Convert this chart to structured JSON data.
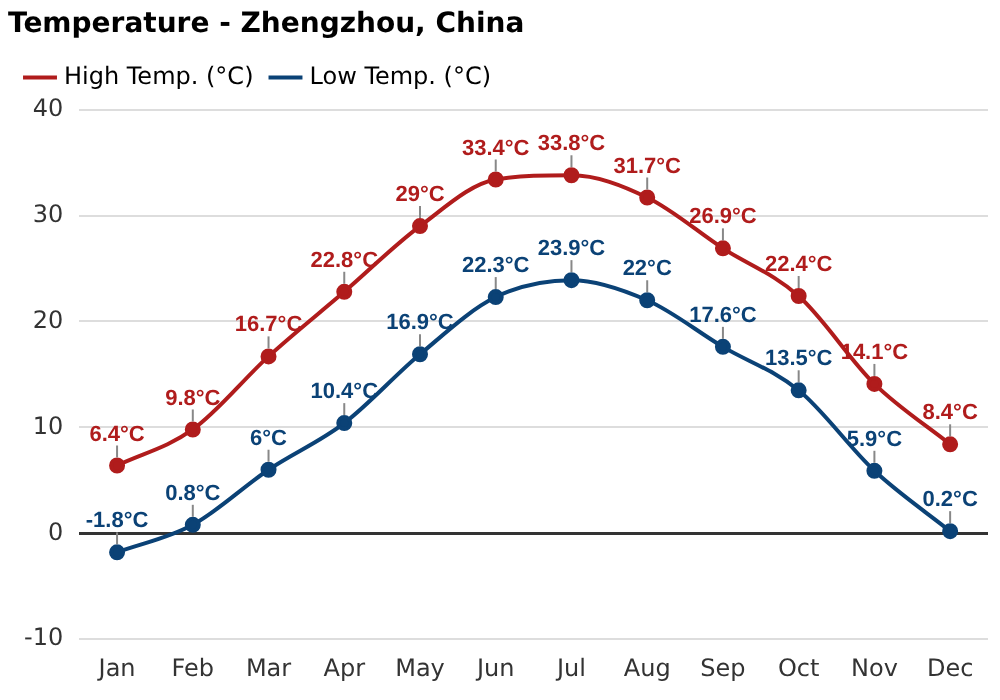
{
  "chart_data": {
    "type": "line",
    "title": "Temperature - Zhengzhou, China",
    "categories": [
      "Jan",
      "Feb",
      "Mar",
      "Apr",
      "May",
      "Jun",
      "Jul",
      "Aug",
      "Sep",
      "Oct",
      "Nov",
      "Dec"
    ],
    "series": [
      {
        "name": "High Temp. (°C)",
        "color": "#b01c1c",
        "values": [
          6.4,
          9.8,
          16.7,
          22.8,
          29,
          33.4,
          33.8,
          31.7,
          26.9,
          22.4,
          14.1,
          8.4
        ],
        "value_labels": [
          "6.4°C",
          "9.8°C",
          "16.7°C",
          "22.8°C",
          "29°C",
          "33.4°C",
          "33.8°C",
          "31.7°C",
          "26.9°C",
          "22.4°C",
          "14.1°C",
          "8.4°C"
        ]
      },
      {
        "name": "Low Temp. (°C)",
        "color": "#0b4276",
        "values": [
          -1.8,
          0.8,
          6,
          10.4,
          16.9,
          22.3,
          23.9,
          22,
          17.6,
          13.5,
          5.9,
          0.2
        ],
        "value_labels": [
          "-1.8°C",
          "0.8°C",
          "6°C",
          "10.4°C",
          "16.9°C",
          "22.3°C",
          "23.9°C",
          "22°C",
          "17.6°C",
          "13.5°C",
          "5.9°C",
          "0.2°C"
        ]
      }
    ],
    "ylim": [
      -10,
      40
    ],
    "yticks": [
      -10,
      0,
      10,
      20,
      30,
      40
    ],
    "grid": "y",
    "legend": "top left",
    "marker": "circle",
    "line_style": "solid"
  }
}
